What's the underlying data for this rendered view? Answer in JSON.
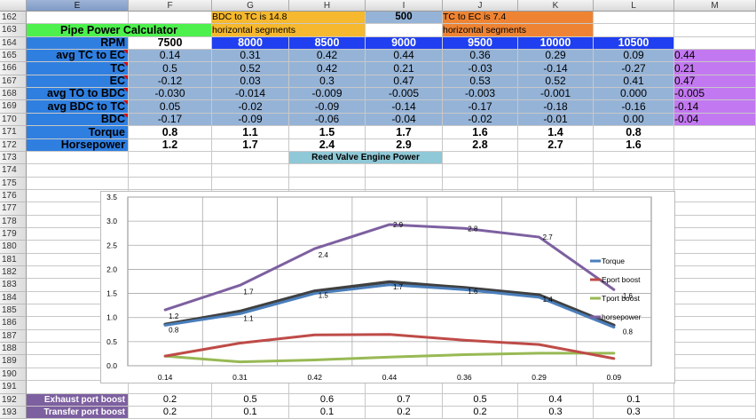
{
  "columns": [
    "E",
    "F",
    "G",
    "H",
    "I",
    "J",
    "K",
    "L",
    "M"
  ],
  "rows": [
    "162",
    "163",
    "164",
    "165",
    "166",
    "167",
    "168",
    "169",
    "170",
    "171",
    "172",
    "173",
    "174",
    "175",
    "176",
    "177",
    "178",
    "179",
    "180",
    "181",
    "182",
    "183",
    "184",
    "185",
    "186",
    "187",
    "188",
    "189",
    "190",
    "191",
    "192",
    "193"
  ],
  "row162": {
    "bdc_to_tc_label": "BDC to TC is",
    "bdc_to_tc_value": "14.8",
    "rpm_input": "500",
    "tc_to_ec_label": "TC to EC is",
    "tc_to_ec_value": "7.4"
  },
  "row163": {
    "title": "Pipe Power  Calculator",
    "bdc_segments": "horizontal  segments",
    "tc_segments": "horizontal  segments"
  },
  "table": {
    "rpm_label": "RPM",
    "rpm": [
      "7500",
      "8000",
      "8500",
      "9000",
      "9500",
      "10000",
      "10500"
    ],
    "rows": [
      {
        "label": "avg TC to EC",
        "values": [
          "0.14",
          "0.31",
          "0.42",
          "0.44",
          "0.36",
          "0.29",
          "0.09"
        ],
        "m": "0.44"
      },
      {
        "label": "TC",
        "values": [
          "0.5",
          "0.52",
          "0.42",
          "0.21",
          "-0.03",
          "-0.14",
          "-0.27"
        ],
        "m": "0.21"
      },
      {
        "label": "EC",
        "values": [
          "-0.12",
          "0.03",
          "0.3",
          "0.47",
          "0.53",
          "0.52",
          "0.41"
        ],
        "m": "0.47"
      },
      {
        "label": "avg TO to BDC",
        "values": [
          "-0.030",
          "-0.014",
          "-0.009",
          "-0.005",
          "-0.003",
          "-0.001",
          "0.000"
        ],
        "m": "-0.005"
      },
      {
        "label": "avg BDC to TC",
        "values": [
          "0.05",
          "-0.02",
          "-0.09",
          "-0.14",
          "-0.17",
          "-0.18",
          "-0.16"
        ],
        "m": "-0.14"
      },
      {
        "label": "BDC",
        "values": [
          "-0.17",
          "-0.09",
          "-0.06",
          "-0.04",
          "-0.02",
          "-0.01",
          "0.00"
        ],
        "m": "-0.04"
      }
    ],
    "torque_label": "Torque",
    "torque": [
      "0.8",
      "1.1",
      "1.5",
      "1.7",
      "1.6",
      "1.4",
      "0.8"
    ],
    "hp_label": "Horsepower",
    "hp": [
      "1.2",
      "1.7",
      "2.4",
      "2.9",
      "2.8",
      "2.7",
      "1.6"
    ]
  },
  "chart_title": "Reed Valve Engine Power",
  "bottom": {
    "exhaust_label": "Exhaust port boost",
    "exhaust": [
      "0.2",
      "0.5",
      "0.6",
      "0.7",
      "0.5",
      "0.4",
      "0.1"
    ],
    "transfer_label": "Transfer port boost",
    "transfer": [
      "0.2",
      "0.1",
      "0.1",
      "0.2",
      "0.2",
      "0.3",
      "0.3"
    ]
  },
  "chart_data": {
    "type": "line",
    "x": [
      "0.14",
      "0.31",
      "0.42",
      "0.44",
      "0.36",
      "0.29",
      "0.09"
    ],
    "ylim": [
      0,
      3.5
    ],
    "yticks": [
      "0.0",
      "0.5",
      "1.0",
      "1.5",
      "2.0",
      "2.5",
      "3.0",
      "3.5"
    ],
    "grid": true,
    "legend": "right",
    "series": [
      {
        "name": "Torque",
        "color": "#4a7ebb",
        "values": [
          0.84,
          1.08,
          1.5,
          1.68,
          1.58,
          1.42,
          0.8
        ],
        "labels": [
          "0.8",
          "1.1",
          "1.5",
          "1.7",
          "1.6",
          "1.4",
          "0.8"
        ]
      },
      {
        "name": "Eport boost",
        "color": "#be4b48",
        "values": [
          0.2,
          0.47,
          0.64,
          0.65,
          0.53,
          0.44,
          0.15
        ],
        "labels": []
      },
      {
        "name": "Tport boost",
        "color": "#98b954",
        "values": [
          0.2,
          0.08,
          0.12,
          0.18,
          0.23,
          0.26,
          0.26
        ],
        "labels": []
      },
      {
        "name": "horsepower",
        "color": "#7d60a0",
        "values": [
          1.16,
          1.67,
          2.43,
          2.93,
          2.85,
          2.67,
          1.58
        ],
        "labels": [
          "1.2",
          "1.7",
          "2.4",
          "2.9",
          "2.8",
          "2.7",
          "1.6"
        ]
      },
      {
        "name": "",
        "color": "#404040",
        "values": [
          0.86,
          1.13,
          1.55,
          1.74,
          1.62,
          1.47,
          0.84
        ],
        "labels": []
      }
    ]
  }
}
